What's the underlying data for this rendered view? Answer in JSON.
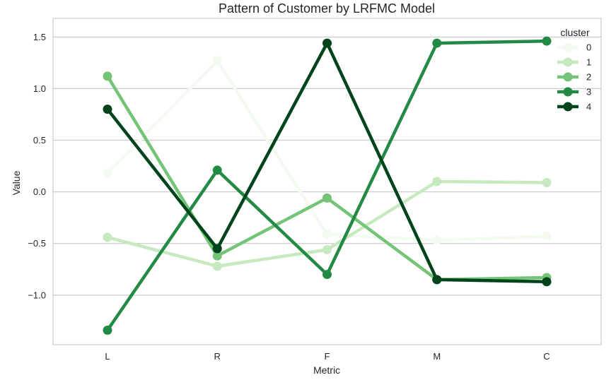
{
  "chart_data": {
    "type": "line",
    "title": "Pattern of Customer by LRFMC Model",
    "xlabel": "Metric",
    "ylabel": "Value",
    "categories": [
      "L",
      "R",
      "F",
      "M",
      "C"
    ],
    "ylim": [
      -1.48,
      1.68
    ],
    "yticks": [
      -1.0,
      -0.5,
      0.0,
      0.5,
      1.0,
      1.5
    ],
    "ytick_labels": [
      "−1.0",
      "−0.5",
      "0.0",
      "0.5",
      "1.0",
      "1.5"
    ],
    "grid": true,
    "legend": {
      "title": "cluster",
      "placement": "top-right"
    },
    "series": [
      {
        "name": "0",
        "color": "#f3faf0",
        "values": [
          0.18,
          1.27,
          -0.41,
          -0.47,
          -0.43
        ]
      },
      {
        "name": "1",
        "color": "#c7e9c0",
        "values": [
          -0.44,
          -0.72,
          -0.56,
          0.1,
          0.09
        ]
      },
      {
        "name": "2",
        "color": "#73c476",
        "values": [
          1.12,
          -0.62,
          -0.06,
          -0.85,
          -0.83
        ]
      },
      {
        "name": "3",
        "color": "#228a44",
        "values": [
          -1.34,
          0.21,
          -0.8,
          1.44,
          1.46
        ]
      },
      {
        "name": "4",
        "color": "#00441b",
        "values": [
          0.8,
          -0.55,
          1.44,
          -0.85,
          -0.87
        ]
      }
    ]
  }
}
